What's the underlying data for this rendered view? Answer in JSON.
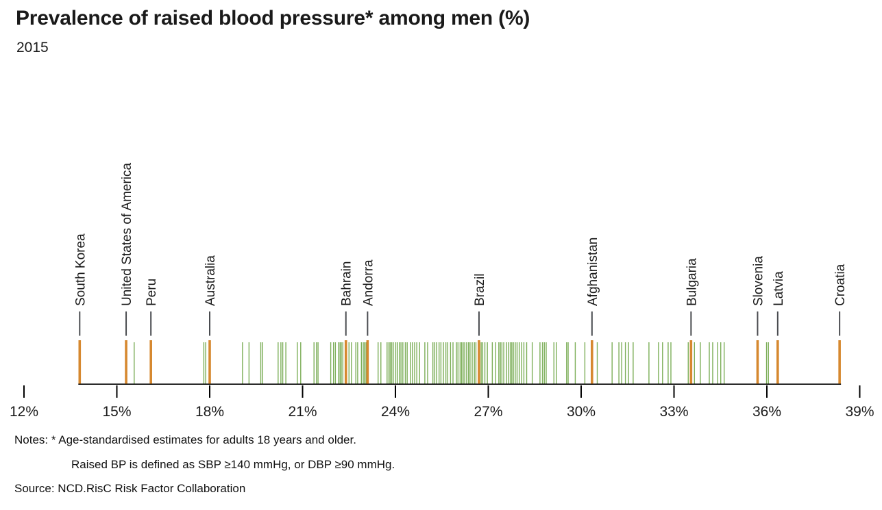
{
  "title": "Prevalence of raised blood pressure* among men (%)",
  "subtitle": "2015",
  "notes": {
    "line1": "Notes: * Age-standardised estimates for adults 18 years and older.",
    "line2": "Raised BP is defined as SBP ≥140 mmHg, or DBP ≥90 mmHg.",
    "source": "Source: NCD.RisC Risk Factor Collaboration"
  },
  "colors": {
    "highlight_orange": "#D6882F",
    "rug_green": "#7CAE58",
    "connector_gray": "#4A4C50",
    "axis_black": "#000000",
    "text": "#1A1A1A"
  },
  "chart_data": {
    "type": "strip-rug",
    "title": "Prevalence of raised blood pressure* among men (%)",
    "subtitle": "2015",
    "unit": "%",
    "axis": {
      "min": 12,
      "max": 39,
      "tick_step": 3,
      "tick_labels": [
        "12%",
        "15%",
        "18%",
        "21%",
        "24%",
        "27%",
        "30%",
        "33%",
        "36%",
        "39%"
      ],
      "grid": false
    },
    "labeled_countries": [
      {
        "name": "South Korea",
        "value": 13.8
      },
      {
        "name": "United States of America",
        "value": 15.3
      },
      {
        "name": "Peru",
        "value": 16.1
      },
      {
        "name": "Australia",
        "value": 18.0
      },
      {
        "name": "Bahrain",
        "value": 22.4
      },
      {
        "name": "Andorra",
        "value": 23.1
      },
      {
        "name": "Brazil",
        "value": 26.7
      },
      {
        "name": "Afghanistan",
        "value": 30.35
      },
      {
        "name": "Bulgaria",
        "value": 33.55
      },
      {
        "name": "Slovenia",
        "value": 35.7
      },
      {
        "name": "Latvia",
        "value": 36.35
      },
      {
        "name": "Croatia",
        "value": 38.35
      }
    ],
    "other_values": [
      15.56,
      17.81,
      17.87,
      19.06,
      19.27,
      19.65,
      19.71,
      20.21,
      20.3,
      20.36,
      20.46,
      20.83,
      20.94,
      21.37,
      21.45,
      21.5,
      21.91,
      22.0,
      22.06,
      22.16,
      22.21,
      22.25,
      22.3,
      22.5,
      22.58,
      22.72,
      22.78,
      22.9,
      22.96,
      23.0,
      23.05,
      23.44,
      23.53,
      23.73,
      23.79,
      23.83,
      23.88,
      23.93,
      24.01,
      24.07,
      24.13,
      24.18,
      24.24,
      24.32,
      24.38,
      24.49,
      24.55,
      24.62,
      24.69,
      24.78,
      24.95,
      25.04,
      25.21,
      25.27,
      25.33,
      25.41,
      25.47,
      25.55,
      25.63,
      25.69,
      25.78,
      25.86,
      25.97,
      26.02,
      26.09,
      26.14,
      26.19,
      26.24,
      26.3,
      26.36,
      26.41,
      26.48,
      26.55,
      26.6,
      26.77,
      26.82,
      26.89,
      26.97,
      27.13,
      27.24,
      27.34,
      27.39,
      27.44,
      27.5,
      27.59,
      27.65,
      27.71,
      27.76,
      27.81,
      27.87,
      27.93,
      28.0,
      28.08,
      28.15,
      28.24,
      28.42,
      28.67,
      28.75,
      28.81,
      28.87,
      29.12,
      29.2,
      29.53,
      29.58,
      29.81,
      30.12,
      30.52,
      31.0,
      31.22,
      31.31,
      31.43,
      31.53,
      31.68,
      32.19,
      32.5,
      32.63,
      32.81,
      32.9,
      33.46,
      33.66,
      33.85,
      34.14,
      34.25,
      34.41,
      34.51,
      34.62,
      35.99,
      36.05
    ]
  }
}
